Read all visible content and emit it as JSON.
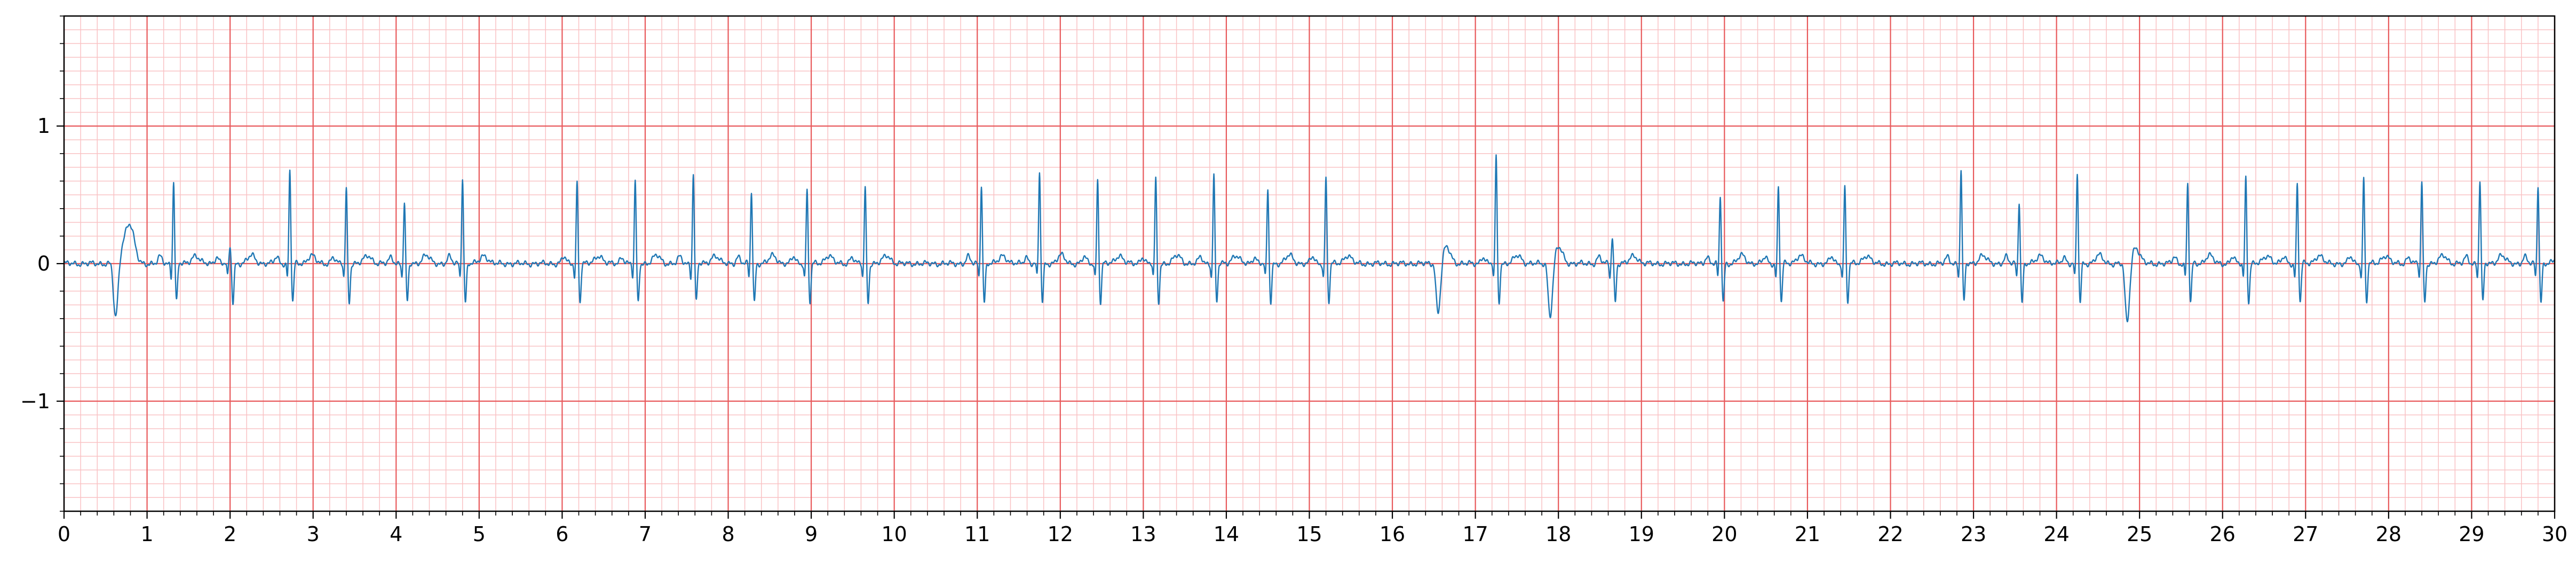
{
  "chart_data": {
    "type": "line",
    "title": "",
    "xlabel": "",
    "ylabel": "",
    "xlim": [
      0,
      30
    ],
    "ylim": [
      -1.8,
      1.8
    ],
    "x_major_ticks": [
      0,
      1,
      2,
      3,
      4,
      5,
      6,
      7,
      8,
      9,
      10,
      11,
      12,
      13,
      14,
      15,
      16,
      17,
      18,
      19,
      20,
      21,
      22,
      23,
      24,
      25,
      26,
      27,
      28,
      29,
      30
    ],
    "x_tick_labels": [
      "0",
      "1",
      "2",
      "3",
      "4",
      "5",
      "6",
      "7",
      "8",
      "9",
      "10",
      "11",
      "12",
      "13",
      "14",
      "15",
      "16",
      "17",
      "18",
      "19",
      "20",
      "21",
      "22",
      "23",
      "24",
      "25",
      "26",
      "27",
      "28",
      "29",
      "30"
    ],
    "y_major_ticks": [
      -1,
      0,
      1
    ],
    "y_tick_labels": [
      "−1",
      "0",
      "1"
    ],
    "grid": true,
    "grid_major_x_step": 1,
    "grid_minor_x_step": 0.2,
    "grid_major_y_step": 1,
    "grid_minor_y_step": 0.1,
    "grid_major_color": "#e8595b",
    "grid_minor_color": "#f9c2c4",
    "line_color": "#1f77b4",
    "legend": "none",
    "series": [
      {
        "beats": [
          {
            "t": 0.62,
            "amp": -0.42,
            "kind": "v"
          },
          {
            "t": 0.8,
            "amp": 0.25,
            "kind": "twave"
          },
          {
            "t": 1.32,
            "amp": 0.6,
            "kind": "n"
          },
          {
            "t": 2.0,
            "amp": 0.12,
            "kind": "n"
          },
          {
            "t": 2.72,
            "amp": 0.68,
            "kind": "n"
          },
          {
            "t": 3.4,
            "amp": 0.55,
            "kind": "n"
          },
          {
            "t": 4.1,
            "amp": 0.44,
            "kind": "n"
          },
          {
            "t": 4.8,
            "amp": 0.63,
            "kind": "n"
          },
          {
            "t": 6.18,
            "amp": 0.6,
            "kind": "n"
          },
          {
            "t": 6.88,
            "amp": 0.6,
            "kind": "n"
          },
          {
            "t": 7.58,
            "amp": 0.66,
            "kind": "n"
          },
          {
            "t": 8.28,
            "amp": 0.53,
            "kind": "n"
          },
          {
            "t": 8.95,
            "amp": 0.54,
            "kind": "n"
          },
          {
            "t": 9.65,
            "amp": 0.56,
            "kind": "n"
          },
          {
            "t": 11.05,
            "amp": 0.58,
            "kind": "n"
          },
          {
            "t": 11.75,
            "amp": 0.67,
            "kind": "n"
          },
          {
            "t": 12.45,
            "amp": 0.62,
            "kind": "n"
          },
          {
            "t": 13.15,
            "amp": 0.62,
            "kind": "n"
          },
          {
            "t": 13.85,
            "amp": 0.65,
            "kind": "n"
          },
          {
            "t": 14.5,
            "amp": 0.54,
            "kind": "n"
          },
          {
            "t": 15.2,
            "amp": 0.63,
            "kind": "n"
          },
          {
            "t": 16.55,
            "amp": -0.38,
            "kind": "v"
          },
          {
            "t": 17.25,
            "amp": 0.79,
            "kind": "n"
          },
          {
            "t": 17.9,
            "amp": -0.4,
            "kind": "v"
          },
          {
            "t": 18.65,
            "amp": 0.2,
            "kind": "n"
          },
          {
            "t": 19.95,
            "amp": 0.49,
            "kind": "n"
          },
          {
            "t": 20.65,
            "amp": 0.56,
            "kind": "n"
          },
          {
            "t": 21.45,
            "amp": 0.57,
            "kind": "n"
          },
          {
            "t": 22.85,
            "amp": 0.69,
            "kind": "n"
          },
          {
            "t": 23.55,
            "amp": 0.46,
            "kind": "n"
          },
          {
            "t": 24.25,
            "amp": 0.66,
            "kind": "n"
          },
          {
            "t": 24.85,
            "amp": -0.45,
            "kind": "v"
          },
          {
            "t": 25.58,
            "amp": 0.58,
            "kind": "n"
          },
          {
            "t": 26.28,
            "amp": 0.63,
            "kind": "n"
          },
          {
            "t": 26.9,
            "amp": 0.58,
            "kind": "n"
          },
          {
            "t": 27.7,
            "amp": 0.63,
            "kind": "n"
          },
          {
            "t": 28.4,
            "amp": 0.6,
            "kind": "n"
          },
          {
            "t": 29.1,
            "amp": 0.61,
            "kind": "n"
          },
          {
            "t": 29.8,
            "amp": 0.58,
            "kind": "n"
          }
        ]
      }
    ]
  }
}
